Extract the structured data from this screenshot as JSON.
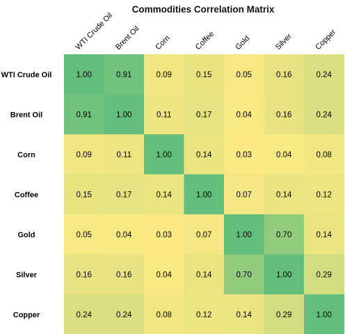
{
  "chart_data": {
    "type": "heatmap",
    "title": "Commodities Correlation Matrix",
    "rows": [
      "WTI Crude Oil",
      "Brent Oil",
      "Corn",
      "Coffee",
      "Gold",
      "Silver",
      "Copper"
    ],
    "columns": [
      "WTI Crude Oil",
      "Brent Oil",
      "Corn",
      "Coffee",
      "Gold",
      "Silver",
      "Copper"
    ],
    "values": [
      [
        1.0,
        0.91,
        0.09,
        0.15,
        0.05,
        0.16,
        0.24
      ],
      [
        0.91,
        1.0,
        0.11,
        0.17,
        0.04,
        0.16,
        0.24
      ],
      [
        0.09,
        0.11,
        1.0,
        0.14,
        0.03,
        0.04,
        0.08
      ],
      [
        0.15,
        0.17,
        0.14,
        1.0,
        0.07,
        0.14,
        0.12
      ],
      [
        0.05,
        0.04,
        0.03,
        0.07,
        1.0,
        0.7,
        0.14
      ],
      [
        0.16,
        0.16,
        0.04,
        0.14,
        0.7,
        1.0,
        0.29
      ],
      [
        0.24,
        0.24,
        0.08,
        0.12,
        0.14,
        0.29,
        1.0
      ]
    ],
    "value_format": "0.00",
    "color_scale": {
      "low": "#fbe983",
      "high": "#63be7b"
    },
    "grid": false,
    "legend": "none"
  }
}
